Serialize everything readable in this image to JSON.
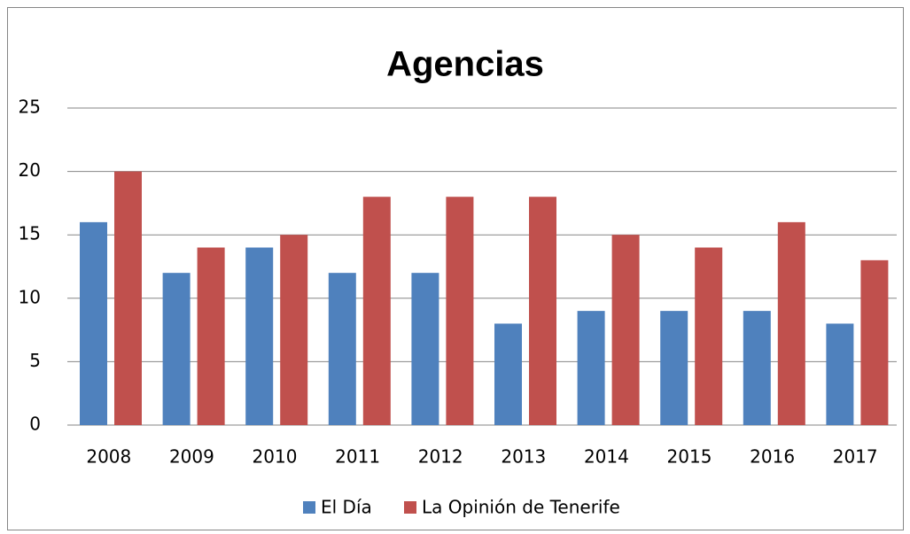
{
  "chart_data": {
    "type": "bar",
    "title": "Agencias",
    "categories": [
      "2008",
      "2009",
      "2010",
      "2011",
      "2012",
      "2013",
      "2014",
      "2015",
      "2016",
      "2017"
    ],
    "series": [
      {
        "name": "El Día",
        "color": "#4f81bd",
        "values": [
          16,
          12,
          14,
          12,
          12,
          8,
          9,
          9,
          9,
          8
        ]
      },
      {
        "name": "La Opinión de Tenerife",
        "color": "#c0504d",
        "values": [
          20,
          14,
          15,
          18,
          18,
          18,
          15,
          14,
          16,
          13
        ]
      }
    ],
    "ylim": [
      0,
      25
    ],
    "yticks": [
      0,
      5,
      10,
      15,
      20,
      25
    ],
    "grid": true,
    "legend": "bottom"
  }
}
